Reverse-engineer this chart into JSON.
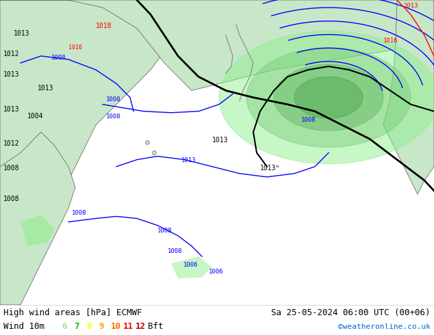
{
  "title_left": "High wind areas [hPa] ECMWF",
  "title_right": "Sa 25-05-2024 06:00 UTC (00+06)",
  "subtitle_left": "Wind 10m",
  "legend_numbers": [
    "6",
    "7",
    "8",
    "9",
    "10",
    "11",
    "12"
  ],
  "legend_colors": [
    "#90ee90",
    "#00cc00",
    "#ffff00",
    "#ffa500",
    "#ff6600",
    "#ff0000",
    "#cc0000"
  ],
  "legend_suffix": "Bft",
  "copyright": "©weatheronline.co.uk",
  "bg_color": "#f0f0f0",
  "map_bg": "#d0e8f0",
  "land_color_light": "#c8e6c8",
  "land_color_dark": "#a0c8a0",
  "contour_color_blue": "#0000ff",
  "contour_color_red": "#ff0000",
  "contour_color_black": "#000000",
  "text_color": "#000000",
  "font_size_title": 9,
  "font_size_legend": 9,
  "font_size_copy": 8
}
